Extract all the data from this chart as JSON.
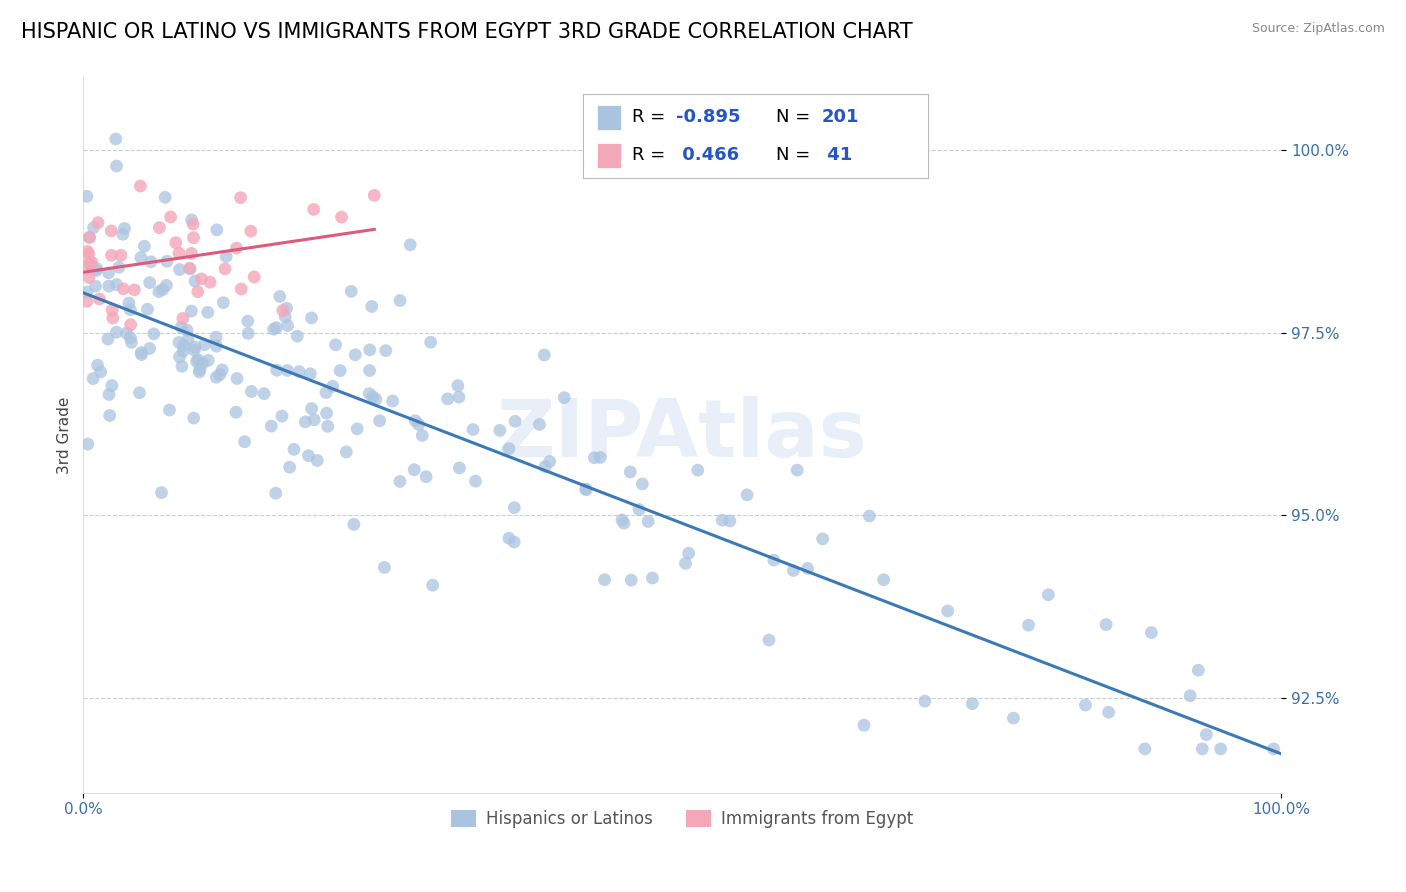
{
  "title": "HISPANIC OR LATINO VS IMMIGRANTS FROM EGYPT 3RD GRADE CORRELATION CHART",
  "source": "Source: ZipAtlas.com",
  "ylabel_label": "3rd Grade",
  "xmin": 0.0,
  "xmax": 100.0,
  "ymin": 91.2,
  "ymax": 101.0,
  "yticks": [
    92.5,
    95.0,
    97.5,
    100.0
  ],
  "ytick_labels": [
    "92.5%",
    "95.0%",
    "97.5%",
    "100.0%"
  ],
  "legend_entries": [
    {
      "label": "Hispanics or Latinos",
      "R": "-0.895",
      "N": "201",
      "color": "#aac4e0"
    },
    {
      "label": "Immigrants from Egypt",
      "R": " 0.466",
      "N": " 41",
      "color": "#f4a7b9"
    }
  ],
  "blue_scatter_color": "#aac4e0",
  "pink_scatter_color": "#f4a7b9",
  "blue_line_color": "#3d7ab5",
  "pink_line_color": "#e05a7a",
  "watermark": "ZIPAtlas",
  "title_fontsize": 15,
  "axis_label_fontsize": 11,
  "tick_fontsize": 11,
  "legend_fontsize": 13
}
